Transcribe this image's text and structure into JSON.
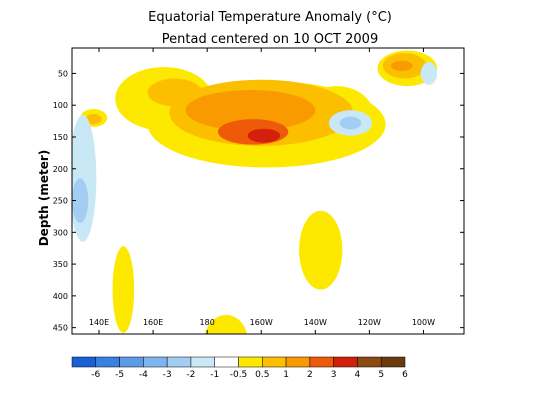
{
  "chart_data": {
    "type": "heatmap",
    "title": "Equatorial Temperature Anomaly (°C)",
    "subtitle": "Pentad centered on 10 OCT 2009",
    "ylabel": "Depth (meter)",
    "xlabel": "",
    "x_ticks": [
      "140E",
      "160E",
      "180",
      "160W",
      "140W",
      "120W",
      "100W"
    ],
    "x_tick_lon": [
      140,
      160,
      180,
      200,
      220,
      240,
      260
    ],
    "xlim_lon": [
      130,
      275
    ],
    "y_ticks": [
      50,
      100,
      150,
      200,
      250,
      300,
      350,
      400,
      450
    ],
    "ylim": [
      10,
      460
    ],
    "y_reversed": true,
    "grid": false,
    "colorbar": {
      "labels": [
        "-6",
        "-5",
        "-4",
        "-3",
        "-2",
        "-1",
        "-0.5",
        "0.5",
        "1",
        "2",
        "3",
        "4",
        "5",
        "6"
      ],
      "colors": [
        "#1a5fd6",
        "#3a80e0",
        "#5b9be8",
        "#7fb5ee",
        "#a3cdf3",
        "#c8e8f6",
        "#ffffff",
        "#fde800",
        "#fbbf00",
        "#f99a00",
        "#ee5a0a",
        "#d2200a",
        "#8a4a10",
        "#6b3a10"
      ]
    },
    "levels": [
      {
        "value": 0.5,
        "color": "#fde800",
        "blobs": [
          {
            "lon": 202,
            "depth": 130,
            "rlon": 44,
            "rdepth": 68
          },
          {
            "lon": 164,
            "depth": 90,
            "rlon": 18,
            "rdepth": 50
          },
          {
            "lon": 228,
            "depth": 120,
            "rlon": 14,
            "rdepth": 50
          },
          {
            "lon": 222,
            "depth": 328,
            "rlon": 8,
            "rdepth": 62
          },
          {
            "lon": 149,
            "depth": 390,
            "rlon": 4,
            "rdepth": 68
          },
          {
            "lon": 187,
            "depth": 470,
            "rlon": 8,
            "rdepth": 40
          },
          {
            "lon": 254,
            "depth": 42,
            "rlon": 11,
            "rdepth": 28
          },
          {
            "lon": 138,
            "depth": 120,
            "rlon": 5,
            "rdepth": 14
          }
        ]
      },
      {
        "value": 1,
        "color": "#fbbf00",
        "blobs": [
          {
            "lon": 200,
            "depth": 112,
            "rlon": 34,
            "rdepth": 52
          },
          {
            "lon": 168,
            "depth": 80,
            "rlon": 10,
            "rdepth": 22
          },
          {
            "lon": 253,
            "depth": 38,
            "rlon": 8,
            "rdepth": 20
          },
          {
            "lon": 138,
            "depth": 122,
            "rlon": 3,
            "rdepth": 8
          }
        ]
      },
      {
        "value": 2,
        "color": "#f99a00",
        "blobs": [
          {
            "lon": 196,
            "depth": 108,
            "rlon": 24,
            "rdepth": 32
          },
          {
            "lon": 252,
            "depth": 38,
            "rlon": 4,
            "rdepth": 8
          }
        ]
      },
      {
        "value": 3,
        "color": "#ee5a0a",
        "blobs": [
          {
            "lon": 197,
            "depth": 142,
            "rlon": 13,
            "rdepth": 20
          },
          {
            "lon": 188,
            "depth": 140,
            "rlon": 4,
            "rdepth": 7
          }
        ]
      },
      {
        "value": 4,
        "color": "#d2200a",
        "blobs": [
          {
            "lon": 201,
            "depth": 148,
            "rlon": 6,
            "rdepth": 11
          }
        ]
      },
      {
        "value": -0.5,
        "color": "#c8e8f6",
        "blobs": [
          {
            "lon": 134,
            "depth": 215,
            "rlon": 5,
            "rdepth": 100
          },
          {
            "lon": 233,
            "depth": 128,
            "rlon": 8,
            "rdepth": 20
          },
          {
            "lon": 262,
            "depth": 50,
            "rlon": 3,
            "rdepth": 18
          }
        ]
      },
      {
        "value": -1,
        "color": "#a3cdf3",
        "blobs": [
          {
            "lon": 133,
            "depth": 250,
            "rlon": 3,
            "rdepth": 35
          },
          {
            "lon": 233,
            "depth": 128,
            "rlon": 4,
            "rdepth": 10
          }
        ]
      }
    ]
  }
}
